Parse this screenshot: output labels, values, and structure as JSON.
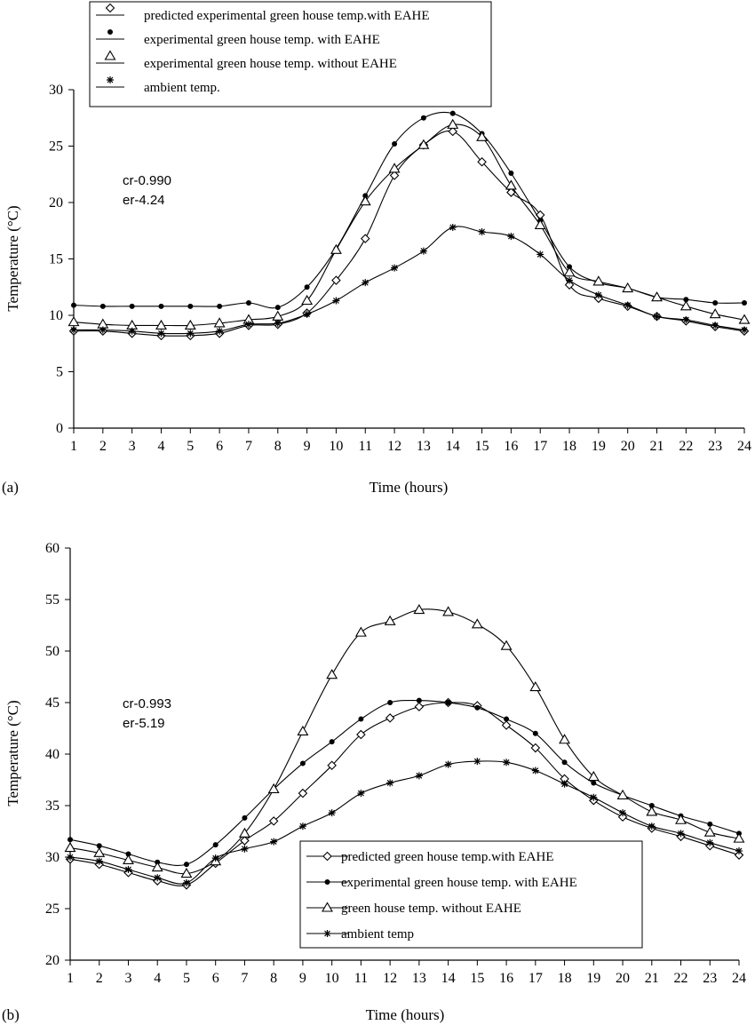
{
  "chart_data": [
    {
      "type": "line",
      "panel_label": "(a)",
      "xlabel": "Time (hours)",
      "ylabel": "Temperature (°C)",
      "ylim": [
        0,
        30
      ],
      "xlim": [
        1,
        24
      ],
      "yticks": [
        0,
        5,
        10,
        15,
        20,
        25,
        30
      ],
      "x": [
        1,
        2,
        3,
        4,
        5,
        6,
        7,
        8,
        9,
        10,
        11,
        12,
        13,
        14,
        15,
        16,
        17,
        18,
        19,
        20,
        21,
        22,
        23,
        24
      ],
      "annotations": [
        "cr-0.990",
        "er-4.24"
      ],
      "legend_position": "top",
      "series": [
        {
          "name": "predicted experimental green house temp.with EAHE",
          "marker": "diamond",
          "values": [
            8.6,
            8.6,
            8.4,
            8.2,
            8.2,
            8.4,
            9.1,
            9.2,
            10.2,
            13.1,
            16.8,
            22.4,
            25.1,
            26.3,
            23.6,
            20.9,
            18.9,
            12.7,
            11.5,
            10.8,
            9.9,
            9.5,
            9.0,
            8.6
          ]
        },
        {
          "name": "experimental green house temp. with EAHE",
          "marker": "dot",
          "values": [
            10.9,
            10.8,
            10.8,
            10.8,
            10.8,
            10.8,
            11.1,
            10.7,
            12.5,
            15.9,
            20.6,
            25.2,
            27.5,
            27.9,
            26.1,
            22.6,
            18.4,
            14.3,
            12.9,
            12.4,
            11.6,
            11.4,
            11.1,
            11.1
          ]
        },
        {
          "name": "experimental green house temp. without EAHE",
          "marker": "triangle",
          "values": [
            9.4,
            9.2,
            9.1,
            9.1,
            9.1,
            9.3,
            9.6,
            9.9,
            11.3,
            15.8,
            20.1,
            23.0,
            25.1,
            26.9,
            25.8,
            21.5,
            18.0,
            13.8,
            13.0,
            12.4,
            11.6,
            10.8,
            10.1,
            9.6
          ]
        },
        {
          "name": "ambient temp.",
          "marker": "star",
          "values": [
            8.7,
            8.7,
            8.6,
            8.4,
            8.4,
            8.6,
            9.2,
            9.3,
            10.1,
            11.3,
            12.9,
            14.2,
            15.7,
            17.8,
            17.4,
            17.0,
            15.4,
            13.1,
            11.8,
            10.9,
            9.9,
            9.6,
            9.1,
            8.7
          ]
        }
      ]
    },
    {
      "type": "line",
      "panel_label": "(b)",
      "xlabel": "Time (hours)",
      "ylabel": "Temperature (°C)",
      "ylim": [
        20,
        60
      ],
      "xlim": [
        1,
        24
      ],
      "yticks": [
        20,
        25,
        30,
        35,
        40,
        45,
        50,
        55,
        60
      ],
      "x": [
        1,
        2,
        3,
        4,
        5,
        6,
        7,
        8,
        9,
        10,
        11,
        12,
        13,
        14,
        15,
        16,
        17,
        18,
        19,
        20,
        21,
        22,
        23,
        24
      ],
      "annotations": [
        "cr-0.993",
        "er-5.19"
      ],
      "legend_position": "bottom-right",
      "series": [
        {
          "name": "predicted green house temp.with EAHE",
          "marker": "diamond",
          "values": [
            29.8,
            29.3,
            28.5,
            27.7,
            27.3,
            29.4,
            31.6,
            33.5,
            36.2,
            38.9,
            41.9,
            43.5,
            44.6,
            45.0,
            44.7,
            42.8,
            40.6,
            37.6,
            35.5,
            33.9,
            32.8,
            32.0,
            31.1,
            30.2
          ]
        },
        {
          "name": "experimental green house temp. with EAHE",
          "marker": "dot",
          "values": [
            31.7,
            31.1,
            30.3,
            29.5,
            29.3,
            31.2,
            33.8,
            36.6,
            39.1,
            41.2,
            43.4,
            45.0,
            45.2,
            45.0,
            44.5,
            43.4,
            42.0,
            39.2,
            37.2,
            36.0,
            35.0,
            34.0,
            33.2,
            32.3
          ]
        },
        {
          "name": "green house temp. without EAHE",
          "marker": "triangle",
          "values": [
            30.9,
            30.4,
            29.7,
            29.0,
            28.4,
            29.6,
            32.3,
            36.6,
            42.2,
            47.7,
            51.8,
            52.9,
            54.0,
            53.8,
            52.6,
            50.5,
            46.5,
            41.4,
            37.8,
            36.0,
            34.4,
            33.6,
            32.4,
            31.8
          ]
        },
        {
          "name": "ambient temp",
          "marker": "star",
          "values": [
            30.0,
            29.6,
            28.8,
            28.0,
            27.5,
            29.9,
            30.8,
            31.5,
            33.0,
            34.3,
            36.2,
            37.2,
            37.9,
            39.0,
            39.3,
            39.2,
            38.4,
            37.1,
            35.8,
            34.3,
            33.0,
            32.3,
            31.4,
            30.6
          ]
        }
      ]
    }
  ]
}
